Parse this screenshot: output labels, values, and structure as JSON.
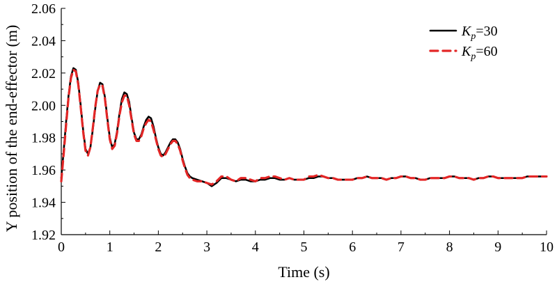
{
  "colors": {
    "kp30": "#000000",
    "kp60": "#e32626",
    "axis": "#000000",
    "background": "#ffffff"
  },
  "chart_data": {
    "type": "line",
    "xlabel": "Time (s)",
    "ylabel": "Y position of the end-effector (m)",
    "xlim": [
      0,
      10
    ],
    "ylim": [
      1.92,
      2.06
    ],
    "grid": false,
    "legend_position": "top-right",
    "xticks": [
      "0",
      "1",
      "2",
      "3",
      "4",
      "5",
      "6",
      "7",
      "8",
      "9",
      "10"
    ],
    "yticks": [
      "1.92",
      "1.94",
      "1.96",
      "1.98",
      "2.00",
      "2.02",
      "2.04",
      "2.06"
    ],
    "series": [
      {
        "name": "Kp=30",
        "legend_main": "K",
        "legend_sub": "p",
        "legend_suffix": "=30",
        "style": "solid",
        "color": "#000000",
        "points": [
          [
            0.0,
            1.955
          ],
          [
            0.05,
            1.972
          ],
          [
            0.1,
            1.99
          ],
          [
            0.15,
            2.006
          ],
          [
            0.2,
            2.018
          ],
          [
            0.25,
            2.023
          ],
          [
            0.3,
            2.022
          ],
          [
            0.35,
            2.014
          ],
          [
            0.4,
            2.0
          ],
          [
            0.45,
            1.985
          ],
          [
            0.5,
            1.973
          ],
          [
            0.55,
            1.97
          ],
          [
            0.6,
            1.974
          ],
          [
            0.65,
            1.985
          ],
          [
            0.7,
            1.998
          ],
          [
            0.75,
            2.009
          ],
          [
            0.8,
            2.014
          ],
          [
            0.85,
            2.013
          ],
          [
            0.9,
            2.005
          ],
          [
            0.95,
            1.992
          ],
          [
            1.0,
            1.98
          ],
          [
            1.05,
            1.974
          ],
          [
            1.1,
            1.976
          ],
          [
            1.15,
            1.984
          ],
          [
            1.2,
            1.995
          ],
          [
            1.25,
            2.004
          ],
          [
            1.3,
            2.008
          ],
          [
            1.35,
            2.007
          ],
          [
            1.4,
            2.002
          ],
          [
            1.45,
            1.992
          ],
          [
            1.5,
            1.983
          ],
          [
            1.55,
            1.979
          ],
          [
            1.6,
            1.979
          ],
          [
            1.65,
            1.982
          ],
          [
            1.7,
            1.987
          ],
          [
            1.75,
            1.991
          ],
          [
            1.8,
            1.993
          ],
          [
            1.85,
            1.992
          ],
          [
            1.9,
            1.987
          ],
          [
            1.95,
            1.98
          ],
          [
            2.0,
            1.974
          ],
          [
            2.05,
            1.97
          ],
          [
            2.1,
            1.969
          ],
          [
            2.15,
            1.971
          ],
          [
            2.2,
            1.974
          ],
          [
            2.25,
            1.977
          ],
          [
            2.3,
            1.979
          ],
          [
            2.35,
            1.979
          ],
          [
            2.4,
            1.977
          ],
          [
            2.45,
            1.973
          ],
          [
            2.5,
            1.967
          ],
          [
            2.55,
            1.962
          ],
          [
            2.6,
            1.958
          ],
          [
            2.65,
            1.956
          ],
          [
            2.7,
            1.955
          ],
          [
            2.8,
            1.954
          ],
          [
            2.9,
            1.953
          ],
          [
            3.0,
            1.952
          ],
          [
            3.1,
            1.95
          ],
          [
            3.2,
            1.952
          ],
          [
            3.3,
            1.955
          ],
          [
            3.4,
            1.955
          ],
          [
            3.5,
            1.954
          ],
          [
            3.6,
            1.953
          ],
          [
            3.7,
            1.954
          ],
          [
            3.8,
            1.954
          ],
          [
            3.9,
            1.953
          ],
          [
            4.0,
            1.953
          ],
          [
            4.1,
            1.954
          ],
          [
            4.2,
            1.954
          ],
          [
            4.3,
            1.955
          ],
          [
            4.4,
            1.955
          ],
          [
            4.5,
            1.954
          ],
          [
            4.6,
            1.954
          ],
          [
            4.7,
            1.955
          ],
          [
            4.8,
            1.954
          ],
          [
            4.9,
            1.954
          ],
          [
            5.0,
            1.954
          ],
          [
            5.1,
            1.955
          ],
          [
            5.2,
            1.955
          ],
          [
            5.3,
            1.956
          ],
          [
            5.4,
            1.956
          ],
          [
            5.5,
            1.955
          ],
          [
            5.6,
            1.955
          ],
          [
            5.7,
            1.954
          ],
          [
            5.8,
            1.954
          ],
          [
            5.9,
            1.954
          ],
          [
            6.0,
            1.954
          ],
          [
            6.1,
            1.955
          ],
          [
            6.2,
            1.955
          ],
          [
            6.3,
            1.956
          ],
          [
            6.4,
            1.955
          ],
          [
            6.5,
            1.955
          ],
          [
            6.6,
            1.955
          ],
          [
            6.7,
            1.954
          ],
          [
            6.8,
            1.955
          ],
          [
            6.9,
            1.955
          ],
          [
            7.0,
            1.956
          ],
          [
            7.1,
            1.956
          ],
          [
            7.2,
            1.955
          ],
          [
            7.3,
            1.955
          ],
          [
            7.4,
            1.954
          ],
          [
            7.5,
            1.954
          ],
          [
            7.6,
            1.955
          ],
          [
            7.7,
            1.955
          ],
          [
            7.8,
            1.955
          ],
          [
            7.9,
            1.955
          ],
          [
            8.0,
            1.956
          ],
          [
            8.1,
            1.956
          ],
          [
            8.2,
            1.955
          ],
          [
            8.3,
            1.955
          ],
          [
            8.4,
            1.955
          ],
          [
            8.5,
            1.954
          ],
          [
            8.6,
            1.955
          ],
          [
            8.7,
            1.955
          ],
          [
            8.8,
            1.956
          ],
          [
            8.9,
            1.956
          ],
          [
            9.0,
            1.955
          ],
          [
            9.1,
            1.955
          ],
          [
            9.2,
            1.955
          ],
          [
            9.3,
            1.955
          ],
          [
            9.4,
            1.955
          ],
          [
            9.5,
            1.955
          ],
          [
            9.6,
            1.956
          ],
          [
            9.7,
            1.956
          ],
          [
            9.8,
            1.956
          ],
          [
            9.9,
            1.956
          ],
          [
            10.0,
            1.956
          ]
        ]
      },
      {
        "name": "Kp=60",
        "legend_main": "K",
        "legend_sub": "p",
        "legend_suffix": "=60",
        "style": "dashed",
        "color": "#e32626",
        "points": [
          [
            0.0,
            1.953
          ],
          [
            0.05,
            1.97
          ],
          [
            0.1,
            1.988
          ],
          [
            0.15,
            2.005
          ],
          [
            0.2,
            2.017
          ],
          [
            0.25,
            2.022
          ],
          [
            0.3,
            2.021
          ],
          [
            0.35,
            2.013
          ],
          [
            0.4,
            1.999
          ],
          [
            0.45,
            1.984
          ],
          [
            0.5,
            1.972
          ],
          [
            0.55,
            1.969
          ],
          [
            0.6,
            1.974
          ],
          [
            0.65,
            1.986
          ],
          [
            0.7,
            1.999
          ],
          [
            0.75,
            2.009
          ],
          [
            0.8,
            2.013
          ],
          [
            0.85,
            2.012
          ],
          [
            0.9,
            2.004
          ],
          [
            0.95,
            1.991
          ],
          [
            1.0,
            1.979
          ],
          [
            1.05,
            1.973
          ],
          [
            1.1,
            1.975
          ],
          [
            1.15,
            1.983
          ],
          [
            1.2,
            1.994
          ],
          [
            1.25,
            2.002
          ],
          [
            1.3,
            2.006
          ],
          [
            1.35,
            2.006
          ],
          [
            1.4,
            2.0
          ],
          [
            1.45,
            1.991
          ],
          [
            1.5,
            1.982
          ],
          [
            1.55,
            1.978
          ],
          [
            1.6,
            1.978
          ],
          [
            1.65,
            1.981
          ],
          [
            1.7,
            1.986
          ],
          [
            1.75,
            1.989
          ],
          [
            1.8,
            1.991
          ],
          [
            1.85,
            1.99
          ],
          [
            1.9,
            1.985
          ],
          [
            1.95,
            1.979
          ],
          [
            2.0,
            1.973
          ],
          [
            2.05,
            1.969
          ],
          [
            2.1,
            1.968
          ],
          [
            2.15,
            1.97
          ],
          [
            2.2,
            1.973
          ],
          [
            2.25,
            1.976
          ],
          [
            2.3,
            1.978
          ],
          [
            2.35,
            1.978
          ],
          [
            2.4,
            1.976
          ],
          [
            2.45,
            1.972
          ],
          [
            2.5,
            1.966
          ],
          [
            2.55,
            1.961
          ],
          [
            2.6,
            1.957
          ],
          [
            2.65,
            1.955
          ],
          [
            2.7,
            1.954
          ],
          [
            2.8,
            1.953
          ],
          [
            2.9,
            1.953
          ],
          [
            3.0,
            1.952
          ],
          [
            3.1,
            1.951
          ],
          [
            3.2,
            1.953
          ],
          [
            3.3,
            1.956
          ],
          [
            3.4,
            1.956
          ],
          [
            3.5,
            1.954
          ],
          [
            3.6,
            1.953
          ],
          [
            3.7,
            1.955
          ],
          [
            3.8,
            1.955
          ],
          [
            3.9,
            1.954
          ],
          [
            4.0,
            1.953
          ],
          [
            4.1,
            1.955
          ],
          [
            4.2,
            1.955
          ],
          [
            4.3,
            1.956
          ],
          [
            4.4,
            1.956
          ],
          [
            4.5,
            1.955
          ],
          [
            4.6,
            1.954
          ],
          [
            4.7,
            1.955
          ],
          [
            4.8,
            1.954
          ],
          [
            4.9,
            1.954
          ],
          [
            5.0,
            1.954
          ],
          [
            5.1,
            1.956
          ],
          [
            5.2,
            1.956
          ],
          [
            5.3,
            1.957
          ],
          [
            5.4,
            1.956
          ],
          [
            5.5,
            1.955
          ],
          [
            5.6,
            1.955
          ],
          [
            5.7,
            1.954
          ],
          [
            5.8,
            1.954
          ],
          [
            5.9,
            1.954
          ],
          [
            6.0,
            1.954
          ],
          [
            6.1,
            1.955
          ],
          [
            6.2,
            1.955
          ],
          [
            6.3,
            1.956
          ],
          [
            6.4,
            1.955
          ],
          [
            6.5,
            1.955
          ],
          [
            6.6,
            1.955
          ],
          [
            6.7,
            1.954
          ],
          [
            6.8,
            1.955
          ],
          [
            6.9,
            1.955
          ],
          [
            7.0,
            1.956
          ],
          [
            7.1,
            1.956
          ],
          [
            7.2,
            1.955
          ],
          [
            7.3,
            1.955
          ],
          [
            7.4,
            1.954
          ],
          [
            7.5,
            1.954
          ],
          [
            7.6,
            1.955
          ],
          [
            7.7,
            1.955
          ],
          [
            7.8,
            1.955
          ],
          [
            7.9,
            1.955
          ],
          [
            8.0,
            1.956
          ],
          [
            8.1,
            1.956
          ],
          [
            8.2,
            1.955
          ],
          [
            8.3,
            1.955
          ],
          [
            8.4,
            1.955
          ],
          [
            8.5,
            1.954
          ],
          [
            8.6,
            1.955
          ],
          [
            8.7,
            1.955
          ],
          [
            8.8,
            1.956
          ],
          [
            8.9,
            1.956
          ],
          [
            9.0,
            1.955
          ],
          [
            9.1,
            1.955
          ],
          [
            9.2,
            1.955
          ],
          [
            9.3,
            1.955
          ],
          [
            9.4,
            1.955
          ],
          [
            9.5,
            1.955
          ],
          [
            9.6,
            1.956
          ],
          [
            9.7,
            1.956
          ],
          [
            9.8,
            1.956
          ],
          [
            9.9,
            1.956
          ],
          [
            10.0,
            1.956
          ]
        ]
      }
    ]
  }
}
